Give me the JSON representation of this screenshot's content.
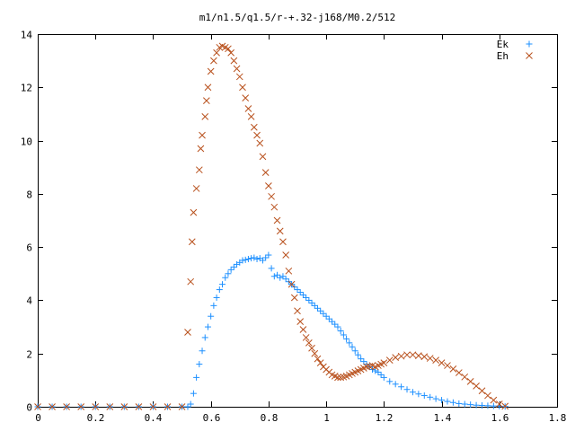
{
  "chart_data": {
    "type": "scatter",
    "title": "m1/n1.5/q1.5/r-+.32-j168/M0.2/512",
    "xlabel": "",
    "ylabel": "",
    "xlim": [
      0,
      1.8
    ],
    "ylim": [
      0,
      14
    ],
    "grid": false,
    "legend_position": "top-right",
    "x_ticks": [
      "0",
      "0.2",
      "0.4",
      "0.6",
      "0.8",
      "1",
      "1.2",
      "1.4",
      "1.6",
      "1.8"
    ],
    "y_ticks": [
      "0",
      "2",
      "4",
      "6",
      "8",
      "10",
      "12",
      "14"
    ],
    "series": [
      {
        "name": "Ek",
        "marker": "plus",
        "color": "#1e90ff",
        "points": [
          [
            0.0,
            0
          ],
          [
            0.05,
            0
          ],
          [
            0.1,
            0
          ],
          [
            0.15,
            0
          ],
          [
            0.2,
            0
          ],
          [
            0.25,
            0
          ],
          [
            0.3,
            0
          ],
          [
            0.35,
            0
          ],
          [
            0.4,
            0
          ],
          [
            0.45,
            0
          ],
          [
            0.5,
            0
          ],
          [
            0.52,
            0
          ],
          [
            0.53,
            0.1
          ],
          [
            0.54,
            0.5
          ],
          [
            0.55,
            1.1
          ],
          [
            0.56,
            1.6
          ],
          [
            0.57,
            2.1
          ],
          [
            0.58,
            2.6
          ],
          [
            0.59,
            3.0
          ],
          [
            0.6,
            3.4
          ],
          [
            0.61,
            3.8
          ],
          [
            0.62,
            4.1
          ],
          [
            0.63,
            4.4
          ],
          [
            0.64,
            4.6
          ],
          [
            0.65,
            4.85
          ],
          [
            0.66,
            5.0
          ],
          [
            0.67,
            5.15
          ],
          [
            0.68,
            5.25
          ],
          [
            0.69,
            5.35
          ],
          [
            0.7,
            5.42
          ],
          [
            0.71,
            5.5
          ],
          [
            0.72,
            5.52
          ],
          [
            0.73,
            5.55
          ],
          [
            0.74,
            5.58
          ],
          [
            0.75,
            5.6
          ],
          [
            0.76,
            5.55
          ],
          [
            0.77,
            5.58
          ],
          [
            0.78,
            5.5
          ],
          [
            0.79,
            5.6
          ],
          [
            0.8,
            5.7
          ],
          [
            0.81,
            5.2
          ],
          [
            0.82,
            4.9
          ],
          [
            0.83,
            4.95
          ],
          [
            0.84,
            4.85
          ],
          [
            0.85,
            4.9
          ],
          [
            0.86,
            4.8
          ],
          [
            0.87,
            4.7
          ],
          [
            0.88,
            4.6
          ],
          [
            0.89,
            4.5
          ],
          [
            0.9,
            4.4
          ],
          [
            0.91,
            4.3
          ],
          [
            0.92,
            4.2
          ],
          [
            0.93,
            4.1
          ],
          [
            0.94,
            4.0
          ],
          [
            0.95,
            3.9
          ],
          [
            0.96,
            3.8
          ],
          [
            0.97,
            3.7
          ],
          [
            0.98,
            3.6
          ],
          [
            0.99,
            3.5
          ],
          [
            1.0,
            3.4
          ],
          [
            1.01,
            3.3
          ],
          [
            1.02,
            3.2
          ],
          [
            1.03,
            3.1
          ],
          [
            1.04,
            3.0
          ],
          [
            1.05,
            2.85
          ],
          [
            1.06,
            2.7
          ],
          [
            1.07,
            2.55
          ],
          [
            1.08,
            2.4
          ],
          [
            1.09,
            2.25
          ],
          [
            1.1,
            2.1
          ],
          [
            1.11,
            1.95
          ],
          [
            1.12,
            1.8
          ],
          [
            1.13,
            1.7
          ],
          [
            1.14,
            1.6
          ],
          [
            1.15,
            1.5
          ],
          [
            1.16,
            1.4
          ],
          [
            1.17,
            1.35
          ],
          [
            1.18,
            1.3
          ],
          [
            1.19,
            1.2
          ],
          [
            1.2,
            1.1
          ],
          [
            1.22,
            0.95
          ],
          [
            1.24,
            0.85
          ],
          [
            1.26,
            0.75
          ],
          [
            1.28,
            0.65
          ],
          [
            1.3,
            0.55
          ],
          [
            1.32,
            0.48
          ],
          [
            1.34,
            0.42
          ],
          [
            1.36,
            0.36
          ],
          [
            1.38,
            0.3
          ],
          [
            1.4,
            0.25
          ],
          [
            1.42,
            0.2
          ],
          [
            1.44,
            0.16
          ],
          [
            1.46,
            0.12
          ],
          [
            1.48,
            0.1
          ],
          [
            1.5,
            0.08
          ],
          [
            1.52,
            0.06
          ],
          [
            1.54,
            0.05
          ],
          [
            1.56,
            0.04
          ],
          [
            1.58,
            0.03
          ],
          [
            1.6,
            0.02
          ],
          [
            1.62,
            0.01
          ]
        ]
      },
      {
        "name": "Eh",
        "marker": "cross",
        "color": "#b8501c",
        "points": [
          [
            0.0,
            0
          ],
          [
            0.05,
            0
          ],
          [
            0.1,
            0
          ],
          [
            0.15,
            0
          ],
          [
            0.2,
            0
          ],
          [
            0.25,
            0
          ],
          [
            0.3,
            0
          ],
          [
            0.35,
            0
          ],
          [
            0.4,
            0
          ],
          [
            0.45,
            0
          ],
          [
            0.5,
            0
          ],
          [
            0.52,
            2.8
          ],
          [
            0.53,
            4.7
          ],
          [
            0.535,
            6.2
          ],
          [
            0.54,
            7.3
          ],
          [
            0.55,
            8.2
          ],
          [
            0.56,
            8.9
          ],
          [
            0.565,
            9.7
          ],
          [
            0.57,
            10.2
          ],
          [
            0.58,
            10.9
          ],
          [
            0.585,
            11.5
          ],
          [
            0.59,
            12.0
          ],
          [
            0.6,
            12.6
          ],
          [
            0.61,
            13.0
          ],
          [
            0.62,
            13.3
          ],
          [
            0.63,
            13.5
          ],
          [
            0.64,
            13.55
          ],
          [
            0.65,
            13.5
          ],
          [
            0.66,
            13.45
          ],
          [
            0.67,
            13.3
          ],
          [
            0.68,
            13.0
          ],
          [
            0.69,
            12.7
          ],
          [
            0.7,
            12.4
          ],
          [
            0.71,
            12.0
          ],
          [
            0.72,
            11.6
          ],
          [
            0.73,
            11.2
          ],
          [
            0.74,
            10.9
          ],
          [
            0.75,
            10.5
          ],
          [
            0.76,
            10.2
          ],
          [
            0.77,
            9.9
          ],
          [
            0.78,
            9.4
          ],
          [
            0.79,
            8.8
          ],
          [
            0.8,
            8.3
          ],
          [
            0.81,
            7.9
          ],
          [
            0.82,
            7.5
          ],
          [
            0.83,
            7.0
          ],
          [
            0.84,
            6.6
          ],
          [
            0.85,
            6.2
          ],
          [
            0.86,
            5.7
          ],
          [
            0.87,
            5.1
          ],
          [
            0.88,
            4.6
          ],
          [
            0.89,
            4.1
          ],
          [
            0.9,
            3.6
          ],
          [
            0.91,
            3.2
          ],
          [
            0.92,
            2.9
          ],
          [
            0.93,
            2.6
          ],
          [
            0.94,
            2.4
          ],
          [
            0.95,
            2.2
          ],
          [
            0.96,
            2.0
          ],
          [
            0.97,
            1.8
          ],
          [
            0.98,
            1.65
          ],
          [
            0.99,
            1.5
          ],
          [
            1.0,
            1.4
          ],
          [
            1.01,
            1.3
          ],
          [
            1.02,
            1.2
          ],
          [
            1.03,
            1.15
          ],
          [
            1.04,
            1.1
          ],
          [
            1.05,
            1.1
          ],
          [
            1.06,
            1.12
          ],
          [
            1.07,
            1.15
          ],
          [
            1.08,
            1.2
          ],
          [
            1.09,
            1.25
          ],
          [
            1.1,
            1.3
          ],
          [
            1.11,
            1.35
          ],
          [
            1.12,
            1.4
          ],
          [
            1.13,
            1.45
          ],
          [
            1.14,
            1.5
          ],
          [
            1.15,
            1.52
          ],
          [
            1.16,
            1.55
          ],
          [
            1.17,
            1.5
          ],
          [
            1.18,
            1.55
          ],
          [
            1.19,
            1.6
          ],
          [
            1.2,
            1.65
          ],
          [
            1.22,
            1.75
          ],
          [
            1.24,
            1.85
          ],
          [
            1.26,
            1.9
          ],
          [
            1.28,
            1.95
          ],
          [
            1.3,
            1.95
          ],
          [
            1.32,
            1.92
          ],
          [
            1.34,
            1.88
          ],
          [
            1.36,
            1.82
          ],
          [
            1.38,
            1.75
          ],
          [
            1.4,
            1.65
          ],
          [
            1.42,
            1.55
          ],
          [
            1.44,
            1.42
          ],
          [
            1.46,
            1.28
          ],
          [
            1.48,
            1.12
          ],
          [
            1.5,
            0.95
          ],
          [
            1.52,
            0.78
          ],
          [
            1.54,
            0.6
          ],
          [
            1.56,
            0.42
          ],
          [
            1.58,
            0.25
          ],
          [
            1.6,
            0.1
          ],
          [
            1.62,
            0.02
          ]
        ]
      }
    ]
  }
}
